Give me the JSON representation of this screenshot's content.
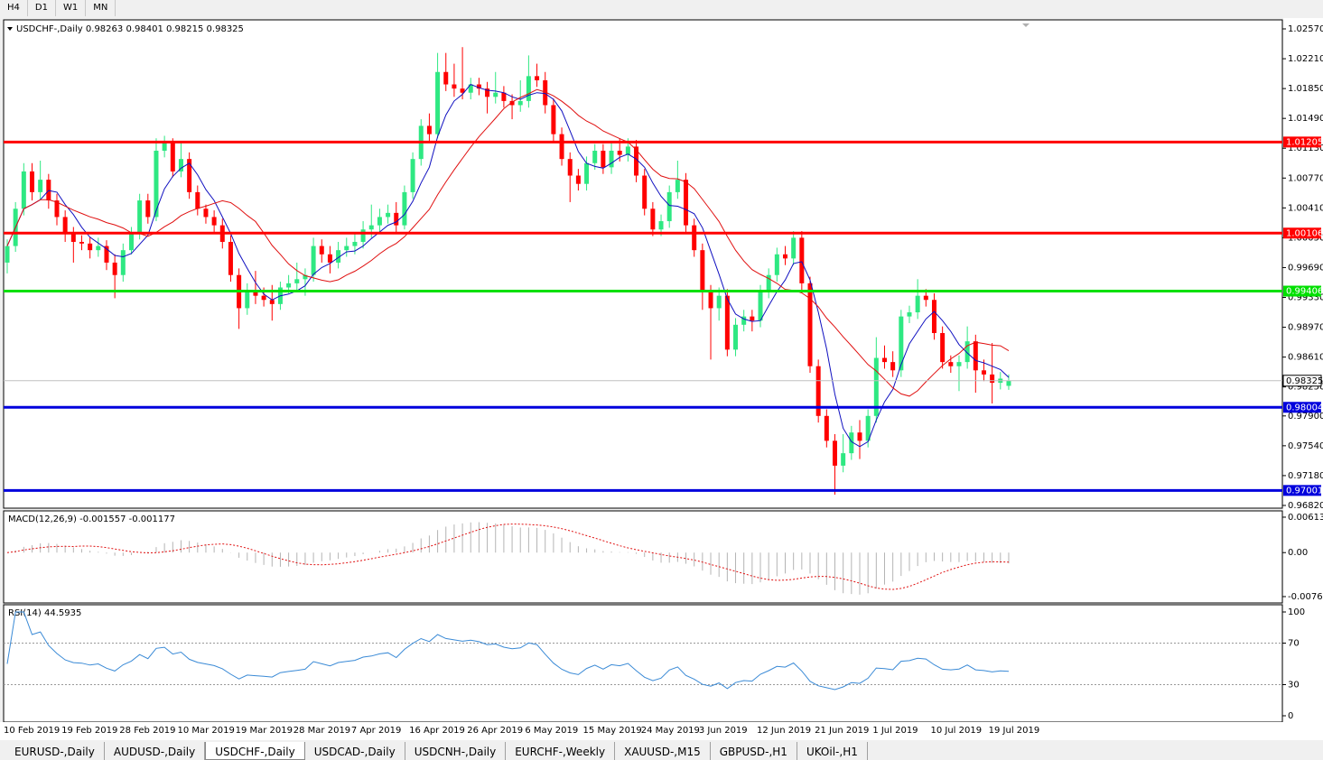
{
  "toolbar": [
    "H4",
    "D1",
    "W1",
    "MN"
  ],
  "tabs": [
    "EURUSD-,Daily",
    "AUDUSD-,Daily",
    "USDCHF-,Daily",
    "USDCAD-,Daily",
    "USDCNH-,Daily",
    "EURCHF-,Weekly",
    "XAUUSD-,M15",
    "GBPUSD-,H1",
    "UKOil-,H1"
  ],
  "active_tab": 2,
  "chart_data": {
    "type": "candlestick",
    "title": "USDCHF-,Daily",
    "open": [
      0.9975,
      0.9995,
      1.004,
      1.0085,
      1.006,
      1.0075,
      1.005,
      1.003,
      1.001,
      1.0,
      0.9998,
      0.999,
      0.9995,
      0.9975,
      0.996,
      0.999,
      1.001,
      1.005,
      1.003,
      1.011,
      1.012,
      1.0085,
      1.01,
      1.006,
      1.004,
      1.003,
      1.002,
      1.0,
      0.996,
      0.992,
      0.994,
      0.9935,
      0.993,
      0.9925,
      0.9945,
      0.995,
      0.9955,
      0.996,
      0.9995,
      0.9985,
      0.9975,
      0.999,
      0.9995,
      1.0,
      1.0015,
      1.002,
      1.003,
      1.0035,
      1.002,
      1.006,
      1.01,
      1.014,
      1.013,
      1.0205,
      1.019,
      1.0185,
      1.018,
      1.019,
      1.0185,
      1.0175,
      1.018,
      1.017,
      1.0165,
      1.017,
      1.02,
      1.0195,
      1.0165,
      1.013,
      1.01,
      1.008,
      1.007,
      1.0095,
      1.011,
      1.009,
      1.011,
      1.0105,
      1.0115,
      1.008,
      1.004,
      1.0015,
      1.0025,
      1.006,
      1.0075,
      1.002,
      0.999,
      0.994,
      0.992,
      0.9935,
      0.987,
      0.99,
      0.991,
      0.9905,
      0.994,
      0.996,
      0.9985,
      0.998,
      1.0005,
      0.995,
      0.985,
      0.979,
      0.976,
      0.973,
      0.9745,
      0.977,
      0.976,
      0.979,
      0.986,
      0.9855,
      0.9845,
      0.991,
      0.9915,
      0.9935,
      0.993,
      0.989,
      0.9855,
      0.985,
      0.9855,
      0.988,
      0.9845,
      0.984,
      0.983,
      0.98263
    ],
    "high": [
      1.0003,
      1.0048,
      1.0095,
      1.0095,
      1.0098,
      1.0082,
      1.0058,
      1.0038,
      1.0018,
      1.0008,
      1.0006,
      1.0005,
      1.0002,
      0.9985,
      0.9998,
      1.0018,
      1.0058,
      1.0058,
      1.0125,
      1.0128,
      1.0125,
      1.012,
      1.0108,
      1.0068,
      1.0045,
      1.0038,
      1.0028,
      1.0008,
      0.9968,
      0.995,
      0.9965,
      0.9945,
      0.9948,
      0.9952,
      0.996,
      0.9975,
      0.9968,
      1.0005,
      1.0003,
      0.9995,
      1.0,
      1.0005,
      1.001,
      1.0025,
      1.0045,
      1.004,
      1.0045,
      1.0048,
      1.0068,
      1.0108,
      1.0148,
      1.0155,
      1.0228,
      1.0228,
      1.0215,
      1.0235,
      1.0198,
      1.0198,
      1.0193,
      1.0205,
      1.0188,
      1.0178,
      1.0195,
      1.0225,
      1.0215,
      1.0205,
      1.0173,
      1.0138,
      1.0108,
      1.0088,
      1.0103,
      1.0118,
      1.0118,
      1.012,
      1.0125,
      1.0125,
      1.0123,
      1.0088,
      1.0048,
      1.0033,
      1.0068,
      1.0098,
      1.0083,
      1.0028,
      0.9998,
      0.9948,
      0.9945,
      0.9943,
      0.9908,
      0.9918,
      0.9918,
      0.9948,
      0.9968,
      0.9993,
      0.9995,
      1.0013,
      1.0013,
      0.9958,
      0.9858,
      0.9798,
      0.9768,
      0.9768,
      0.9778,
      0.9785,
      0.9798,
      0.9885,
      0.9875,
      0.9868,
      0.9918,
      0.9923,
      0.9955,
      0.9943,
      0.9938,
      0.9898,
      0.9863,
      0.9863,
      0.9898,
      0.9888,
      0.9858,
      0.9878,
      0.9843,
      0.98401
    ],
    "low": [
      0.9962,
      0.9988,
      1.0032,
      1.005,
      1.005,
      1.004,
      1.002,
      1.0,
      0.9975,
      0.999,
      0.998,
      0.9982,
      0.9966,
      0.9932,
      0.9952,
      0.9985,
      1.0003,
      1.0022,
      1.0025,
      1.0102,
      1.0078,
      1.0078,
      1.0052,
      1.0032,
      1.0022,
      1.0012,
      0.9992,
      0.9952,
      0.9895,
      0.9912,
      0.9925,
      0.9922,
      0.9905,
      0.9918,
      0.9938,
      0.9942,
      0.9935,
      0.9952,
      0.9975,
      0.9962,
      0.9968,
      0.9982,
      0.9985,
      0.9992,
      1.0005,
      1.0012,
      1.0022,
      1.0012,
      1.0015,
      1.0052,
      1.0092,
      1.0122,
      1.0125,
      1.0182,
      1.0175,
      1.0172,
      1.0172,
      1.0177,
      1.0155,
      1.0167,
      1.0162,
      1.0148,
      1.0157,
      1.0162,
      1.0187,
      1.0155,
      1.0122,
      1.0092,
      1.0048,
      1.0062,
      1.0062,
      1.0087,
      1.0082,
      1.0082,
      1.0097,
      1.0097,
      1.0072,
      1.0032,
      1.0007,
      1.0007,
      1.0017,
      1.0052,
      1.0012,
      0.9982,
      0.9918,
      0.9858,
      0.9905,
      0.9862,
      0.9862,
      0.9892,
      0.9892,
      0.9897,
      0.9932,
      0.9952,
      0.9972,
      0.9972,
      0.9942,
      0.9842,
      0.9782,
      0.9752,
      0.9695,
      0.9722,
      0.9737,
      0.9738,
      0.9752,
      0.9782,
      0.9847,
      0.9837,
      0.9837,
      0.9902,
      0.9907,
      0.9922,
      0.9882,
      0.9847,
      0.9842,
      0.982,
      0.9847,
      0.9818,
      0.9832,
      0.9805,
      0.9822,
      0.98215
    ],
    "close": [
      0.9995,
      1.004,
      1.0085,
      1.006,
      1.0075,
      1.005,
      1.003,
      1.001,
      1.0,
      0.9998,
      0.999,
      0.9995,
      0.9975,
      0.996,
      0.999,
      1.001,
      1.005,
      1.003,
      1.011,
      1.012,
      1.0085,
      1.01,
      1.006,
      1.004,
      1.003,
      1.002,
      1.0,
      0.996,
      0.992,
      0.994,
      0.9935,
      0.993,
      0.9925,
      0.9945,
      0.995,
      0.9955,
      0.996,
      0.9995,
      0.9985,
      0.9975,
      0.999,
      0.9995,
      1.0,
      1.0015,
      1.002,
      1.003,
      1.0035,
      1.002,
      1.006,
      1.01,
      1.014,
      1.013,
      1.0205,
      1.019,
      1.0185,
      1.018,
      1.019,
      1.0185,
      1.0175,
      1.018,
      1.017,
      1.0165,
      1.017,
      1.02,
      1.0195,
      1.0165,
      1.013,
      1.01,
      1.008,
      1.007,
      1.0095,
      1.011,
      1.009,
      1.011,
      1.0105,
      1.0115,
      1.008,
      1.004,
      1.0015,
      1.0025,
      1.006,
      1.0075,
      1.002,
      0.999,
      0.994,
      0.992,
      0.9935,
      0.987,
      0.99,
      0.991,
      0.9905,
      0.994,
      0.996,
      0.9985,
      0.998,
      1.0005,
      0.995,
      0.985,
      0.979,
      0.976,
      0.973,
      0.9745,
      0.977,
      0.976,
      0.979,
      0.986,
      0.9855,
      0.9845,
      0.991,
      0.9915,
      0.9935,
      0.993,
      0.989,
      0.9855,
      0.985,
      0.9855,
      0.988,
      0.9845,
      0.984,
      0.983,
      0.9835,
      0.98325
    ],
    "up_color": "#2ee882",
    "down_color": "#ff0000",
    "ylim": [
      0.96787,
      1.02679
    ],
    "yticks": [
      {
        "value": 1.0257,
        "label": "1.02570"
      },
      {
        "value": 1.0221,
        "label": "1.02210"
      },
      {
        "value": 1.0185,
        "label": "1.01850"
      },
      {
        "value": 1.0149,
        "label": "1.01490"
      },
      {
        "value": 1.0113,
        "label": "1.01130"
      },
      {
        "value": 1.0077,
        "label": "1.00770"
      },
      {
        "value": 1.0041,
        "label": "1.00410"
      },
      {
        "value": 1.0005,
        "label": "1.00050"
      },
      {
        "value": 0.9969,
        "label": "0.99690"
      },
      {
        "value": 0.9933,
        "label": "0.99330"
      },
      {
        "value": 0.9897,
        "label": "0.98970"
      },
      {
        "value": 0.9861,
        "label": "0.98610"
      },
      {
        "value": 0.9825,
        "label": "0.98250"
      },
      {
        "value": 0.979,
        "label": "0.97900"
      },
      {
        "value": 0.9754,
        "label": "0.97540"
      },
      {
        "value": 0.9718,
        "label": "0.97180"
      },
      {
        "value": 0.9682,
        "label": "0.96820"
      }
    ],
    "x_labels": [
      "10 Feb 2019",
      "19 Feb 2019",
      "28 Feb 2019",
      "10 Mar 2019",
      "19 Mar 2019",
      "28 Mar 2019",
      "7 Apr 2019",
      "16 Apr 2019",
      "26 Apr 2019",
      "6 May 2019",
      "15 May 2019",
      "24 May 2019",
      "3 Jun 2019",
      "12 Jun 2019",
      "21 Jun 2019",
      "1 Jul 2019",
      "10 Jul 2019",
      "19 Jul 2019"
    ],
    "levels": [
      {
        "value": 1.01205,
        "color": "#ff0000"
      },
      {
        "value": 1.00106,
        "color": "#ff0000"
      },
      {
        "value": 0.99406,
        "color": "#00e000"
      },
      {
        "value": 0.98004,
        "color": "#0000dd"
      },
      {
        "value": 0.97001,
        "color": "#0000dd"
      }
    ],
    "macd": {
      "title": "MACD(12,26,9)",
      "values": [
        -0.001557,
        -0.001177
      ],
      "ylim": [
        -0.00871,
        0.00722
      ],
      "yticks": [
        0.00613,
        {
          "value": 0,
          "label": "0.00"
        },
        -0.007612
      ]
    },
    "rsi": {
      "title": "RSI(14)",
      "value": 44.5935,
      "ylim": [
        0,
        100
      ],
      "yticks": [
        100,
        70,
        30,
        0
      ]
    }
  }
}
